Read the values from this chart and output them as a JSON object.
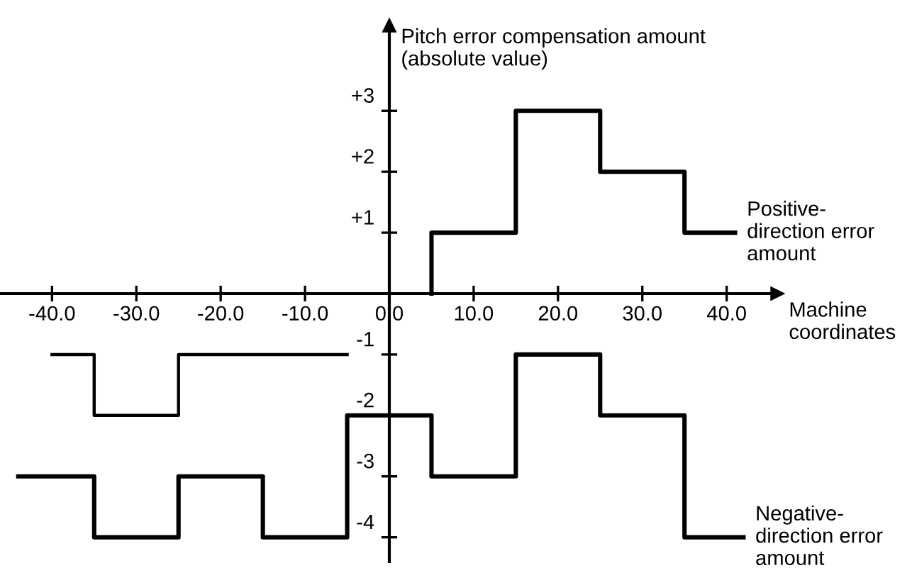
{
  "chart_data": {
    "type": "step",
    "ylabel": "Pitch error compensation amount\n(absolute value)",
    "xlabel": "Machine coordinates",
    "xlim": [
      -46,
      46
    ],
    "ylim": [
      -4.4,
      4.4
    ],
    "xticks": [
      {
        "value": -40,
        "label": "-40.0"
      },
      {
        "value": -30,
        "label": "-30.0"
      },
      {
        "value": -20,
        "label": "-20.0"
      },
      {
        "value": -10,
        "label": "-10.0"
      },
      {
        "value": 0,
        "label": "0.0"
      },
      {
        "value": 10,
        "label": "10.0"
      },
      {
        "value": 20,
        "label": "20.0"
      },
      {
        "value": 30,
        "label": "30.0"
      },
      {
        "value": 40,
        "label": "40.0"
      }
    ],
    "yticks": [
      {
        "value": 3,
        "label": "+3"
      },
      {
        "value": 2,
        "label": "+2"
      },
      {
        "value": 1,
        "label": "+1"
      },
      {
        "value": -1,
        "label": "-1"
      },
      {
        "value": -2,
        "label": "-2"
      },
      {
        "value": -3,
        "label": "-3"
      },
      {
        "value": -4,
        "label": "-4"
      }
    ],
    "grid": false,
    "legend": false,
    "series": [
      {
        "name": "Positive-direction error amount",
        "color": "#000000",
        "x": [
          5,
          5,
          15,
          25,
          35,
          41
        ],
        "values": [
          0,
          1,
          3,
          2,
          1,
          1
        ]
      },
      {
        "color": "#000000",
        "x": [
          -40,
          -35,
          -25,
          -5
        ],
        "values": [
          -1,
          -2,
          -1,
          -1
        ]
      },
      {
        "name": "Negative-direction error amount",
        "color": "#000000",
        "x": [
          -44,
          -35,
          -25,
          -15,
          -5,
          5,
          15,
          25,
          35,
          42
        ],
        "values": [
          -3,
          -4,
          -3,
          -4,
          -2,
          -3,
          -1,
          -2,
          -4,
          -4
        ]
      }
    ]
  }
}
